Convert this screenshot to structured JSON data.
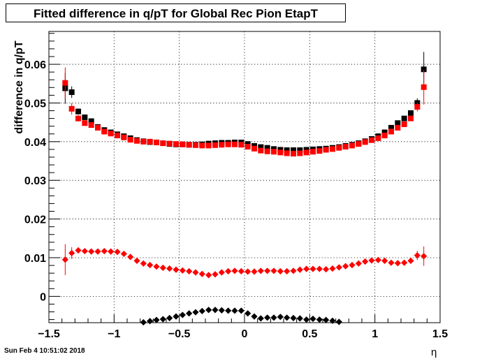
{
  "title": "Fitted difference in q/pT  for Global Rec Pion EtapT",
  "timestamp": "Sun Feb  4 10:51:02 2018",
  "chart_data": {
    "type": "scatter",
    "title": "Fitted difference in q/pT  for Global Rec Pion EtapT",
    "xlabel": "η",
    "ylabel": "difference in q/pT",
    "xlim": [
      -1.5,
      1.5
    ],
    "ylim": [
      -0.0068,
      0.0685
    ],
    "x_ticks": [
      -1.5,
      -1,
      -0.5,
      0,
      0.5,
      1,
      1.5
    ],
    "x_tick_labels": [
      "−1.5",
      "−1",
      "−0.5",
      "0",
      "0.5",
      "1",
      "1.5"
    ],
    "y_ticks": [
      0,
      0.01,
      0.02,
      0.03,
      0.04,
      0.05,
      0.06
    ],
    "y_tick_labels": [
      "0",
      "0.01",
      "0.02",
      "0.03",
      "0.04",
      "0.05",
      "0.06"
    ],
    "grid": true,
    "series": [
      {
        "color": "#000000",
        "marker": "square",
        "x": [
          -1.375,
          -1.325,
          -1.275,
          -1.225,
          -1.175,
          -1.125,
          -1.075,
          -1.025,
          -0.975,
          -0.925,
          -0.875,
          -0.825,
          -0.775,
          -0.725,
          -0.675,
          -0.625,
          -0.575,
          -0.525,
          -0.475,
          -0.425,
          -0.375,
          -0.325,
          -0.275,
          -0.225,
          -0.175,
          -0.125,
          -0.075,
          -0.025,
          0.025,
          0.075,
          0.125,
          0.175,
          0.225,
          0.275,
          0.325,
          0.375,
          0.425,
          0.475,
          0.525,
          0.575,
          0.625,
          0.675,
          0.725,
          0.775,
          0.825,
          0.875,
          0.925,
          0.975,
          1.025,
          1.075,
          1.125,
          1.175,
          1.225,
          1.275,
          1.325,
          1.375
        ],
        "y": [
          0.0538,
          0.0528,
          0.0478,
          0.0463,
          0.0453,
          0.0438,
          0.043,
          0.0424,
          0.0419,
          0.0414,
          0.0409,
          0.0404,
          0.0401,
          0.0399,
          0.0398,
          0.0396,
          0.0394,
          0.0393,
          0.0393,
          0.0392,
          0.0392,
          0.0393,
          0.0395,
          0.0396,
          0.0397,
          0.0397,
          0.0398,
          0.0398,
          0.0394,
          0.0389,
          0.0386,
          0.0384,
          0.0381,
          0.0379,
          0.0378,
          0.0378,
          0.0378,
          0.0379,
          0.038,
          0.0381,
          0.0382,
          0.0384,
          0.0386,
          0.0389,
          0.0392,
          0.0396,
          0.0401,
          0.0407,
          0.0414,
          0.0424,
          0.0436,
          0.0448,
          0.046,
          0.0474,
          0.05,
          0.0587
        ],
        "y_err": [
          0.004,
          0.0015,
          0.0008,
          0.0006,
          0.0004,
          0.0003,
          0.0003,
          0.0002,
          0.0002,
          0.0002,
          0.0002,
          0.0002,
          0.0002,
          0.0002,
          0.0002,
          0.0002,
          0.0002,
          0.0002,
          0.0002,
          0.0002,
          0.0002,
          0.0002,
          0.0002,
          0.0002,
          0.0002,
          0.0002,
          0.0002,
          0.0002,
          0.0002,
          0.0002,
          0.0002,
          0.0002,
          0.0002,
          0.0002,
          0.0002,
          0.0002,
          0.0002,
          0.0002,
          0.0002,
          0.0002,
          0.0002,
          0.0002,
          0.0002,
          0.0002,
          0.0002,
          0.0002,
          0.0002,
          0.0002,
          0.0002,
          0.0003,
          0.0003,
          0.0004,
          0.0005,
          0.0007,
          0.0012,
          0.0045
        ]
      },
      {
        "color": "#ff0000",
        "marker": "square",
        "x": [
          -1.375,
          -1.325,
          -1.275,
          -1.225,
          -1.175,
          -1.125,
          -1.075,
          -1.025,
          -0.975,
          -0.925,
          -0.875,
          -0.825,
          -0.775,
          -0.725,
          -0.675,
          -0.625,
          -0.575,
          -0.525,
          -0.475,
          -0.425,
          -0.375,
          -0.325,
          -0.275,
          -0.225,
          -0.175,
          -0.125,
          -0.075,
          -0.025,
          0.025,
          0.075,
          0.125,
          0.175,
          0.225,
          0.275,
          0.325,
          0.375,
          0.425,
          0.475,
          0.525,
          0.575,
          0.625,
          0.675,
          0.725,
          0.775,
          0.825,
          0.875,
          0.925,
          0.975,
          1.025,
          1.075,
          1.125,
          1.175,
          1.225,
          1.275,
          1.325,
          1.375
        ],
        "y": [
          0.0552,
          0.0485,
          0.046,
          0.0448,
          0.0443,
          0.0436,
          0.0426,
          0.0421,
          0.0416,
          0.0411,
          0.0405,
          0.0402,
          0.04,
          0.04,
          0.0398,
          0.0396,
          0.0395,
          0.0394,
          0.0393,
          0.0392,
          0.0391,
          0.039,
          0.039,
          0.0391,
          0.0392,
          0.0393,
          0.0393,
          0.0392,
          0.0387,
          0.0382,
          0.0377,
          0.0375,
          0.0374,
          0.0372,
          0.037,
          0.0369,
          0.037,
          0.0372,
          0.0374,
          0.0376,
          0.0379,
          0.0381,
          0.0384,
          0.0387,
          0.039,
          0.0394,
          0.0399,
          0.0404,
          0.0409,
          0.0416,
          0.0426,
          0.0436,
          0.0445,
          0.046,
          0.049,
          0.0541
        ],
        "y_err": [
          0.004,
          0.0015,
          0.0008,
          0.0006,
          0.0004,
          0.0003,
          0.0003,
          0.0002,
          0.0002,
          0.0002,
          0.0002,
          0.0002,
          0.0002,
          0.0002,
          0.0002,
          0.0002,
          0.0002,
          0.0002,
          0.0002,
          0.0002,
          0.0002,
          0.0002,
          0.0002,
          0.0002,
          0.0002,
          0.0002,
          0.0002,
          0.0002,
          0.0002,
          0.0002,
          0.0002,
          0.0002,
          0.0002,
          0.0002,
          0.0002,
          0.0002,
          0.0002,
          0.0002,
          0.0002,
          0.0002,
          0.0002,
          0.0002,
          0.0002,
          0.0002,
          0.0002,
          0.0002,
          0.0002,
          0.0002,
          0.0002,
          0.0003,
          0.0003,
          0.0004,
          0.0005,
          0.0007,
          0.0012,
          0.0045
        ]
      },
      {
        "color": "#ff0000",
        "marker": "diamond",
        "x": [
          -1.375,
          -1.325,
          -1.275,
          -1.225,
          -1.175,
          -1.125,
          -1.075,
          -1.025,
          -0.975,
          -0.925,
          -0.875,
          -0.825,
          -0.775,
          -0.725,
          -0.675,
          -0.625,
          -0.575,
          -0.525,
          -0.475,
          -0.425,
          -0.375,
          -0.325,
          -0.275,
          -0.225,
          -0.175,
          -0.125,
          -0.075,
          -0.025,
          0.025,
          0.075,
          0.125,
          0.175,
          0.225,
          0.275,
          0.325,
          0.375,
          0.425,
          0.475,
          0.525,
          0.575,
          0.625,
          0.675,
          0.725,
          0.775,
          0.825,
          0.875,
          0.925,
          0.975,
          1.025,
          1.075,
          1.125,
          1.175,
          1.225,
          1.275,
          1.325,
          1.375
        ],
        "y": [
          0.0095,
          0.0112,
          0.0119,
          0.0117,
          0.0116,
          0.0116,
          0.0117,
          0.0116,
          0.0115,
          0.011,
          0.0102,
          0.0092,
          0.0085,
          0.0081,
          0.0077,
          0.0074,
          0.0072,
          0.0069,
          0.0067,
          0.0065,
          0.0062,
          0.0058,
          0.0055,
          0.0057,
          0.0062,
          0.0065,
          0.0066,
          0.0065,
          0.0064,
          0.0064,
          0.0066,
          0.0066,
          0.0066,
          0.0065,
          0.0065,
          0.0066,
          0.0069,
          0.0071,
          0.0071,
          0.0071,
          0.007,
          0.0072,
          0.0075,
          0.0078,
          0.0081,
          0.0085,
          0.009,
          0.0093,
          0.0094,
          0.0092,
          0.0087,
          0.0086,
          0.0087,
          0.0092,
          0.0106,
          0.0104
        ],
        "y_err": [
          0.004,
          0.0015,
          0.0008,
          0.0006,
          0.0004,
          0.0003,
          0.0003,
          0.0002,
          0.0002,
          0.0002,
          0.0002,
          0.0002,
          0.0002,
          0.0002,
          0.0002,
          0.0002,
          0.0002,
          0.0002,
          0.0002,
          0.0002,
          0.0002,
          0.0002,
          0.0002,
          0.0002,
          0.0002,
          0.0002,
          0.0002,
          0.0002,
          0.0002,
          0.0002,
          0.0002,
          0.0002,
          0.0002,
          0.0002,
          0.0002,
          0.0002,
          0.0002,
          0.0002,
          0.0002,
          0.0002,
          0.0002,
          0.0002,
          0.0002,
          0.0002,
          0.0002,
          0.0002,
          0.0002,
          0.0002,
          0.0002,
          0.0003,
          0.0003,
          0.0004,
          0.0005,
          0.0007,
          0.0012,
          0.0025
        ]
      },
      {
        "color": "#000000",
        "marker": "diamond",
        "x": [
          -0.775,
          -0.725,
          -0.675,
          -0.625,
          -0.575,
          -0.525,
          -0.475,
          -0.425,
          -0.375,
          -0.325,
          -0.275,
          -0.225,
          -0.175,
          -0.125,
          -0.075,
          -0.025,
          0.025,
          0.075,
          0.125,
          0.175,
          0.225,
          0.275,
          0.325,
          0.375,
          0.425,
          0.475,
          0.525,
          0.575,
          0.625,
          0.675,
          0.725
        ],
        "y": [
          -0.0067,
          -0.0064,
          -0.0061,
          -0.0059,
          -0.0056,
          -0.0052,
          -0.0048,
          -0.0044,
          -0.0041,
          -0.0038,
          -0.0035,
          -0.0035,
          -0.0036,
          -0.0037,
          -0.0037,
          -0.0037,
          -0.0044,
          -0.0052,
          -0.0057,
          -0.0055,
          -0.0055,
          -0.0053,
          -0.0055,
          -0.0056,
          -0.0057,
          -0.006,
          -0.0058,
          -0.006,
          -0.0061,
          -0.0063,
          -0.0066
        ],
        "y_err": [
          0.0002,
          0.0002,
          0.0002,
          0.0002,
          0.0002,
          0.0002,
          0.0002,
          0.0002,
          0.0002,
          0.0002,
          0.0002,
          0.0002,
          0.0002,
          0.0002,
          0.0002,
          0.0002,
          0.0002,
          0.0002,
          0.0002,
          0.0002,
          0.0002,
          0.0002,
          0.0002,
          0.0002,
          0.0002,
          0.0002,
          0.0002,
          0.0002,
          0.0002,
          0.0002,
          0.0002
        ]
      }
    ]
  }
}
